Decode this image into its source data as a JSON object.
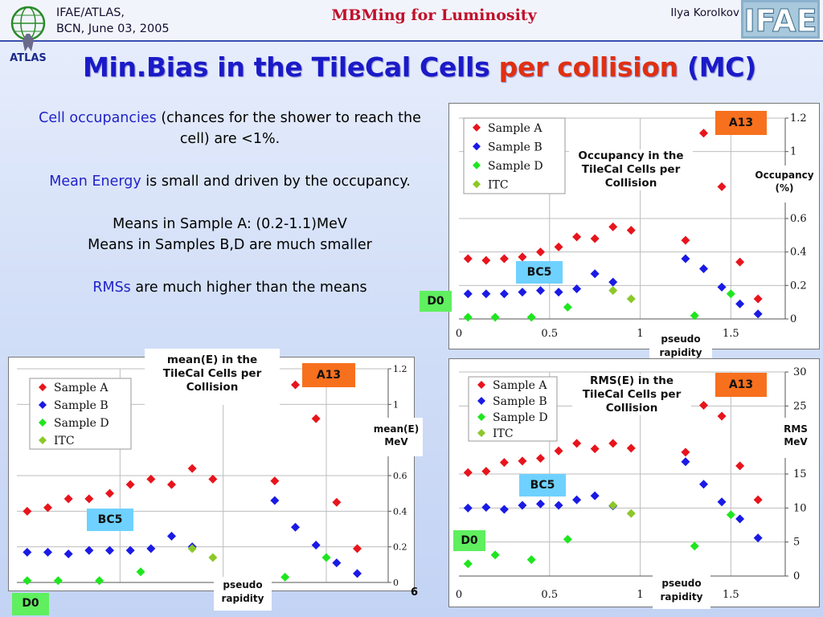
{
  "header": {
    "left_line1": "IFAE/ATLAS,",
    "left_line2": "BCN, June 03, 2005",
    "center": "MBMing for Luminosity",
    "right": "Ilya Korolkov",
    "atlas_logo": "ATLAS",
    "ifae_logo": "IFAE"
  },
  "title": {
    "part1": "Min.Bias in the TileCal Cells",
    "part2": "per collision",
    "part3": "(MC)"
  },
  "text": {
    "p1_colored": "Cell occupancies",
    "p1_rest": " (chances for the shower to reach the cell) are <1%.",
    "p2_colored": "Mean Energy",
    "p2_rest": " is small and driven by the occupancy.",
    "p3_line1": "Means in Sample A: (0.2-1.1)MeV",
    "p3_line2": "Means in Samples B,D are much smaller",
    "p4_colored": "RMSs",
    "p4_rest": " are much higher than the means"
  },
  "page_number": "6",
  "colors": {
    "title_blue": "#1a1ac8",
    "title_red": "#e03010",
    "sample_a": "#e8141c",
    "sample_b": "#1a1ae6",
    "sample_d": "#1ee61e",
    "itc": "#8cc828",
    "a13_box": "#f7701e",
    "bc5_box": "#6fd1ff",
    "d0_box": "#5fef5f"
  },
  "legend": [
    "Sample A",
    "Sample B",
    "Sample D",
    "ITC"
  ],
  "chart_data": [
    {
      "type": "scatter",
      "title": "Occupancy in the TileCal Cells per Collision",
      "xlabel": "pseudo rapidity",
      "ylabel": "Occupancy (%)",
      "xlim": [
        0,
        1.8
      ],
      "ylim": [
        0,
        1.2
      ],
      "x_ticks": [
        "0",
        "0.5",
        "1",
        "1.5"
      ],
      "y_ticks": [
        "0",
        "0.2",
        "0.4",
        "0.6",
        "1",
        "1.2"
      ],
      "annotations": [
        "A13",
        "BC5",
        "D0"
      ],
      "series": [
        {
          "name": "Sample A",
          "x": [
            0.05,
            0.15,
            0.25,
            0.35,
            0.45,
            0.55,
            0.65,
            0.75,
            0.85,
            0.95,
            1.25,
            1.35,
            1.45,
            1.55,
            1.65
          ],
          "y": [
            0.36,
            0.35,
            0.36,
            0.37,
            0.4,
            0.43,
            0.49,
            0.48,
            0.55,
            0.53,
            0.47,
            1.11,
            0.79,
            0.34,
            0.12
          ]
        },
        {
          "name": "Sample B",
          "x": [
            0.05,
            0.15,
            0.25,
            0.35,
            0.45,
            0.55,
            0.65,
            0.75,
            0.85,
            1.25,
            1.35,
            1.45,
            1.55,
            1.65
          ],
          "y": [
            0.15,
            0.15,
            0.15,
            0.16,
            0.17,
            0.16,
            0.18,
            0.27,
            0.22,
            0.36,
            0.3,
            0.19,
            0.09,
            0.03
          ]
        },
        {
          "name": "Sample D",
          "x": [
            0.05,
            0.2,
            0.4,
            0.6,
            1.3,
            1.5
          ],
          "y": [
            0.01,
            0.01,
            0.01,
            0.07,
            0.02,
            0.15
          ]
        },
        {
          "name": "ITC",
          "x": [
            0.85,
            0.95
          ],
          "y": [
            0.17,
            0.12
          ]
        }
      ]
    },
    {
      "type": "scatter",
      "title": "mean(E) in the TileCal Cells per Collision",
      "xlabel": "pseudo rapidity",
      "ylabel": "mean(E) MeV",
      "xlim": [
        0,
        1.8
      ],
      "ylim": [
        0,
        1.2
      ],
      "x_ticks": [
        "0.5",
        "1.5"
      ],
      "y_ticks": [
        "0",
        "0.2",
        "0.4",
        "0.6",
        "1",
        "1.2"
      ],
      "annotations": [
        "A13",
        "BC5",
        "D0"
      ],
      "series": [
        {
          "name": "Sample A",
          "x": [
            0.05,
            0.15,
            0.25,
            0.35,
            0.45,
            0.55,
            0.65,
            0.75,
            0.85,
            0.95,
            1.25,
            1.35,
            1.45,
            1.55,
            1.65
          ],
          "y": [
            0.4,
            0.42,
            0.47,
            0.47,
            0.5,
            0.55,
            0.58,
            0.55,
            0.64,
            0.58,
            0.57,
            1.11,
            0.92,
            0.45,
            0.19
          ]
        },
        {
          "name": "Sample B",
          "x": [
            0.05,
            0.15,
            0.25,
            0.35,
            0.45,
            0.55,
            0.65,
            0.75,
            0.85,
            1.25,
            1.35,
            1.45,
            1.55,
            1.65
          ],
          "y": [
            0.17,
            0.17,
            0.16,
            0.18,
            0.18,
            0.18,
            0.19,
            0.26,
            0.2,
            0.46,
            0.31,
            0.21,
            0.11,
            0.05
          ]
        },
        {
          "name": "Sample D",
          "x": [
            0.05,
            0.2,
            0.4,
            0.6,
            1.3,
            1.5
          ],
          "y": [
            0.01,
            0.01,
            0.01,
            0.06,
            0.03,
            0.14
          ]
        },
        {
          "name": "ITC",
          "x": [
            0.85,
            0.95
          ],
          "y": [
            0.19,
            0.14
          ]
        }
      ]
    },
    {
      "type": "scatter",
      "title": "RMS(E) in the TileCal Cells per Collision",
      "xlabel": "pseudo rapidity",
      "ylabel": "RMS MeV",
      "xlim": [
        0,
        1.8
      ],
      "ylim": [
        0,
        30
      ],
      "x_ticks": [
        "0",
        "0.5",
        "1",
        "1.5"
      ],
      "y_ticks": [
        "0",
        "5",
        "10",
        "15",
        "25",
        "30"
      ],
      "annotations": [
        "A13",
        "BC5",
        "D0"
      ],
      "series": [
        {
          "name": "Sample A",
          "x": [
            0.05,
            0.15,
            0.25,
            0.35,
            0.45,
            0.55,
            0.65,
            0.75,
            0.85,
            0.95,
            1.25,
            1.35,
            1.45,
            1.55,
            1.65
          ],
          "y": [
            15.2,
            15.4,
            16.7,
            16.9,
            17.3,
            18.4,
            19.5,
            18.7,
            19.5,
            18.8,
            18.2,
            25.1,
            23.5,
            16.2,
            11.2
          ]
        },
        {
          "name": "Sample B",
          "x": [
            0.05,
            0.15,
            0.25,
            0.35,
            0.45,
            0.55,
            0.65,
            0.75,
            0.85,
            1.25,
            1.35,
            1.45,
            1.55,
            1.65
          ],
          "y": [
            10.0,
            10.1,
            9.8,
            10.4,
            10.6,
            10.4,
            11.2,
            11.8,
            10.3,
            16.8,
            13.5,
            10.9,
            8.4,
            5.6
          ]
        },
        {
          "name": "Sample D",
          "x": [
            0.05,
            0.2,
            0.4,
            0.6,
            1.3,
            1.5
          ],
          "y": [
            1.8,
            3.1,
            2.4,
            5.4,
            4.4,
            9.0
          ]
        },
        {
          "name": "ITC",
          "x": [
            0.85,
            0.95
          ],
          "y": [
            10.4,
            9.2
          ]
        }
      ]
    }
  ]
}
